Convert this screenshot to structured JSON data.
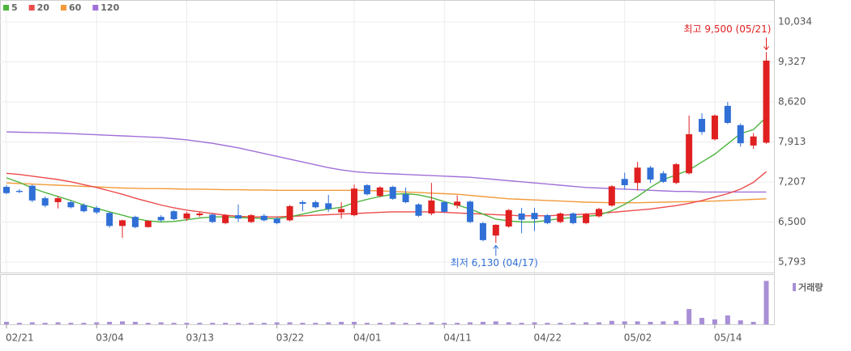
{
  "chart_data": {
    "type": "candlestick",
    "categories": [
      "02/21",
      null,
      null,
      null,
      null,
      null,
      null,
      "03/04",
      null,
      null,
      null,
      null,
      null,
      null,
      "03/13",
      null,
      null,
      null,
      null,
      null,
      null,
      "03/22",
      null,
      null,
      null,
      null,
      null,
      "04/01",
      null,
      null,
      null,
      null,
      null,
      null,
      "04/11",
      null,
      null,
      null,
      null,
      null,
      null,
      "04/22",
      null,
      null,
      null,
      null,
      null,
      null,
      "05/02",
      null,
      null,
      null,
      null,
      null,
      null,
      "05/14",
      null,
      null,
      null,
      null
    ],
    "open": [
      7120,
      7050,
      7140,
      6920,
      6850,
      6850,
      6800,
      6750,
      6660,
      6430,
      6590,
      6410,
      6590,
      6690,
      6560,
      6620,
      6630,
      6480,
      6620,
      6500,
      6610,
      6560,
      6530,
      6850,
      6850,
      6830,
      6670,
      6620,
      7150,
      6960,
      7120,
      6990,
      6810,
      6650,
      6850,
      6790,
      6860,
      6480,
      6260,
      6420,
      6650,
      6660,
      6620,
      6500,
      6650,
      6480,
      6600,
      6790,
      7260,
      7190,
      7460,
      7360,
      7190,
      7360,
      8320,
      7960,
      8550,
      8210,
      7850,
      7900
    ],
    "high": [
      7150,
      7080,
      7160,
      6950,
      6960,
      6880,
      6830,
      6780,
      6680,
      6540,
      6610,
      6530,
      6620,
      6710,
      6680,
      6670,
      6650,
      6640,
      6810,
      6640,
      6640,
      6590,
      6800,
      6880,
      6880,
      6980,
      6850,
      7160,
      7170,
      7130,
      7140,
      7110,
      6830,
      7190,
      6870,
      6970,
      6880,
      6500,
      6460,
      6730,
      6750,
      6750,
      6640,
      6670,
      6670,
      6660,
      6750,
      7150,
      7370,
      7560,
      7490,
      7400,
      7540,
      8380,
      8420,
      8400,
      8620,
      8240,
      8070,
      9500
    ],
    "low": [
      6990,
      7010,
      6850,
      6760,
      6740,
      6740,
      6670,
      6640,
      6400,
      6220,
      6390,
      6400,
      6500,
      6530,
      6520,
      6590,
      6480,
      6460,
      6500,
      6480,
      6510,
      6460,
      6510,
      6690,
      6740,
      6680,
      6560,
      6600,
      6970,
      6940,
      6890,
      6830,
      6590,
      6620,
      6660,
      6740,
      6480,
      6160,
      6130,
      6400,
      6300,
      6340,
      6460,
      6480,
      6460,
      6460,
      6580,
      6770,
      7070,
      7060,
      7190,
      7190,
      7170,
      7340,
      8040,
      7940,
      8230,
      7830,
      7790,
      7880
    ],
    "close": [
      7010,
      7030,
      6880,
      6790,
      6920,
      6760,
      6690,
      6670,
      6430,
      6530,
      6410,
      6520,
      6530,
      6550,
      6650,
      6650,
      6500,
      6620,
      6560,
      6620,
      6530,
      6480,
      6780,
      6820,
      6760,
      6730,
      6730,
      7090,
      6990,
      7110,
      6910,
      6850,
      6610,
      6880,
      6680,
      6860,
      6500,
      6180,
      6450,
      6710,
      6540,
      6550,
      6480,
      6650,
      6480,
      6640,
      6730,
      7130,
      7150,
      7460,
      7250,
      7210,
      7520,
      8050,
      8090,
      8380,
      8250,
      7890,
      8010,
      9350
    ],
    "up_color": "#e02020",
    "down_color": "#2f6fd6",
    "ylim": [
      5600,
      10300
    ],
    "yticks": [
      {
        "value": 5793,
        "label": "5,793"
      },
      {
        "value": 6500,
        "label": "6,500"
      },
      {
        "value": 7207,
        "label": "7,207"
      },
      {
        "value": 7913,
        "label": "7,913"
      },
      {
        "value": 8620,
        "label": "8,620"
      },
      {
        "value": 9327,
        "label": "9,327"
      },
      {
        "value": 10034,
        "label": "10,034"
      }
    ],
    "grid": true,
    "moving_averages": [
      {
        "name": "5",
        "color": "#4cb43c",
        "values": [
          7280,
          7200,
          7100,
          7020,
          6950,
          6880,
          6800,
          6740,
          6680,
          6620,
          6560,
          6520,
          6500,
          6510,
          6540,
          6570,
          6590,
          6590,
          6580,
          6570,
          6560,
          6560,
          6590,
          6640,
          6690,
          6730,
          6760,
          6840,
          6900,
          6950,
          6990,
          7000,
          6980,
          6930,
          6860,
          6800,
          6730,
          6640,
          6550,
          6520,
          6500,
          6500,
          6530,
          6560,
          6580,
          6600,
          6620,
          6700,
          6810,
          6950,
          7110,
          7250,
          7330,
          7420,
          7560,
          7700,
          7880,
          8060,
          8130,
          8350
        ]
      },
      {
        "name": "20",
        "color": "#ec4b4b",
        "values": [
          7360,
          7340,
          7310,
          7280,
          7250,
          7210,
          7160,
          7110,
          7050,
          6990,
          6920,
          6860,
          6800,
          6750,
          6710,
          6680,
          6650,
          6620,
          6600,
          6590,
          6590,
          6590,
          6600,
          6610,
          6620,
          6630,
          6640,
          6650,
          6660,
          6670,
          6680,
          6680,
          6680,
          6680,
          6670,
          6660,
          6650,
          6640,
          6630,
          6620,
          6610,
          6610,
          6610,
          6620,
          6630,
          6640,
          6650,
          6670,
          6690,
          6710,
          6730,
          6760,
          6790,
          6830,
          6880,
          6940,
          7000,
          7080,
          7200,
          7390
        ]
      },
      {
        "name": "60",
        "color": "#f29a3a",
        "values": [
          7190,
          7180,
          7170,
          7160,
          7150,
          7140,
          7130,
          7120,
          7110,
          7100,
          7095,
          7090,
          7090,
          7085,
          7080,
          7080,
          7075,
          7070,
          7070,
          7065,
          7065,
          7060,
          7060,
          7060,
          7060,
          7060,
          7060,
          7060,
          7055,
          7050,
          7040,
          7030,
          7020,
          7010,
          7000,
          6990,
          6970,
          6950,
          6930,
          6910,
          6900,
          6890,
          6880,
          6870,
          6860,
          6850,
          6845,
          6840,
          6840,
          6840,
          6845,
          6850,
          6855,
          6860,
          6865,
          6870,
          6880,
          6890,
          6900,
          6910
        ]
      },
      {
        "name": "120",
        "color": "#a070d8",
        "values": [
          8090,
          8085,
          8080,
          8075,
          8070,
          8060,
          8050,
          8040,
          8030,
          8020,
          8010,
          8000,
          7990,
          7970,
          7950,
          7920,
          7890,
          7850,
          7810,
          7760,
          7710,
          7660,
          7610,
          7560,
          7510,
          7460,
          7420,
          7390,
          7370,
          7360,
          7350,
          7340,
          7330,
          7320,
          7310,
          7300,
          7290,
          7270,
          7250,
          7230,
          7210,
          7190,
          7170,
          7150,
          7130,
          7110,
          7100,
          7090,
          7080,
          7070,
          7060,
          7050,
          7040,
          7040,
          7030,
          7030,
          7030,
          7030,
          7030,
          7030
        ]
      }
    ],
    "volume": {
      "name": "거래량",
      "color": "#a88fd6",
      "ylim": [
        0,
        100
      ],
      "values": [
        5,
        3,
        4,
        3,
        4,
        3,
        3,
        4,
        5,
        6,
        5,
        3,
        4,
        3,
        3,
        3,
        3,
        3,
        3,
        3,
        3,
        4,
        4,
        3,
        3,
        4,
        5,
        5,
        3,
        3,
        4,
        3,
        3,
        4,
        3,
        3,
        4,
        5,
        6,
        4,
        3,
        4,
        3,
        3,
        3,
        4,
        4,
        7,
        6,
        6,
        5,
        6,
        7,
        31,
        13,
        10,
        18,
        8,
        5,
        88
      ]
    },
    "annotations": [
      {
        "text": "최고 9,500 (05/21)",
        "color": "#e02020"
      },
      {
        "text": "최저 6,130 (04/17)",
        "color": "#2f6fd6"
      }
    ]
  }
}
